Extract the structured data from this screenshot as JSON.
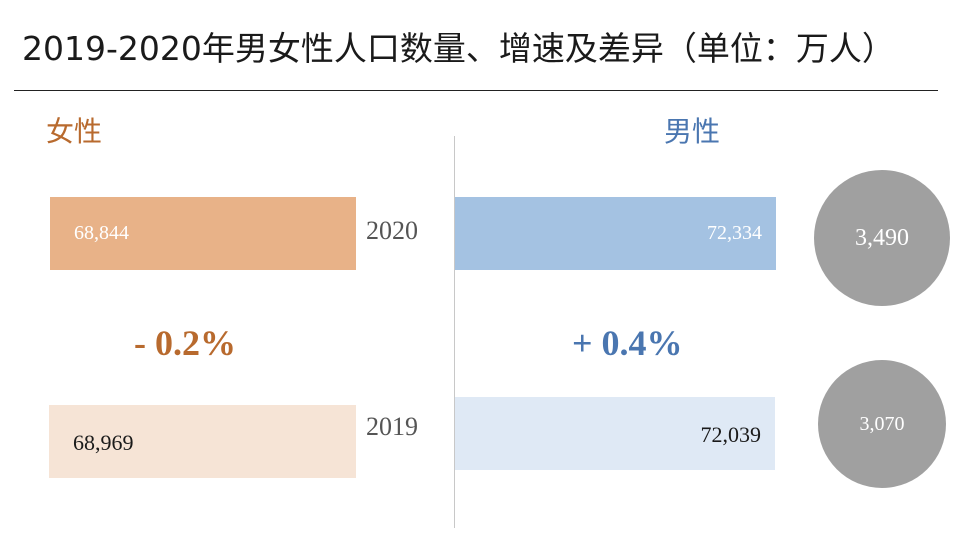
{
  "title": "2019-2020年男女性人口数量、增速及差异（单位：万人）",
  "colors": {
    "female_2020": "#e8b288",
    "female_2019": "#f6e4d6",
    "male_2020": "#a4c2e2",
    "male_2019": "#dfe9f5",
    "female_text": "#b86a2e",
    "male_text": "#4a76b0",
    "circle": "#a0a0a0"
  },
  "chart_data": {
    "type": "bar",
    "categories": [
      "2020",
      "2019"
    ],
    "series": [
      {
        "name": "女性",
        "values": [
          68844,
          68969
        ],
        "labels": [
          "68,844",
          "68,969"
        ]
      },
      {
        "name": "男性",
        "values": [
          72334,
          72039
        ],
        "labels": [
          "72,334",
          "72,039"
        ]
      }
    ],
    "growth": {
      "female": "- 0.2%",
      "male": "+ 0.4%"
    },
    "difference": {
      "values": [
        3490,
        3070
      ],
      "labels": [
        "3,490",
        "3,070"
      ]
    }
  }
}
